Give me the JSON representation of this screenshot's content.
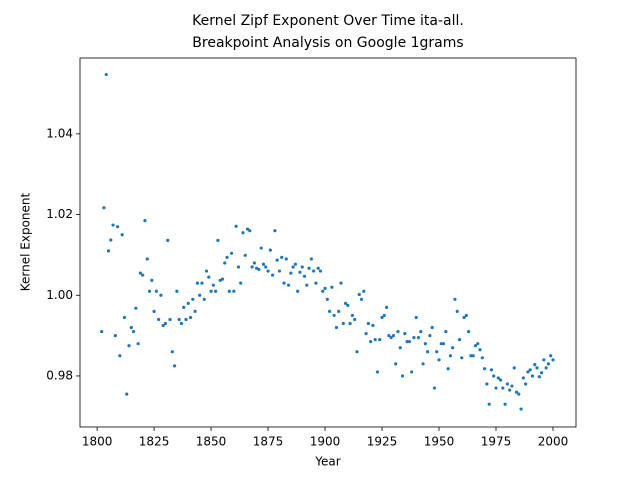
{
  "chart_data": {
    "type": "scatter",
    "title": [
      "Kernel Zipf Exponent Over Time ita-all.",
      "Breakpoint Analysis on Google 1grams"
    ],
    "xlabel": "Year",
    "ylabel": "Kernel Exponent",
    "xlim": [
      1792.5,
      2010.1
    ],
    "ylim": [
      0.96735,
      1.0588
    ],
    "xticks": [
      1800,
      1825,
      1850,
      1875,
      1900,
      1925,
      1950,
      1975,
      2000
    ],
    "yticks": [
      0.98,
      {
        "value": 1,
        "label": "1.00"
      },
      1.02,
      1.04
    ],
    "color": "#1f77b4",
    "x": [
      1802,
      1803,
      1804,
      1805,
      1806,
      1807,
      1808,
      1809,
      1810,
      1811,
      1812,
      1813,
      1814,
      1815,
      1816,
      1817,
      1818,
      1819,
      1820,
      1821,
      1822,
      1823,
      1824,
      1825,
      1826,
      1827,
      1828,
      1829,
      1830,
      1831,
      1832,
      1833,
      1834,
      1835,
      1836,
      1837,
      1838,
      1839,
      1840,
      1841,
      1842,
      1843,
      1844,
      1845,
      1846,
      1847,
      1848,
      1849,
      1850,
      1851,
      1852,
      1853,
      1854,
      1855,
      1856,
      1857,
      1858,
      1859,
      1860,
      1861,
      1862,
      1863,
      1864,
      1865,
      1866,
      1867,
      1868,
      1869,
      1870,
      1871,
      1872,
      1873,
      1874,
      1875,
      1876,
      1877,
      1878,
      1879,
      1880,
      1881,
      1882,
      1883,
      1884,
      1885,
      1886,
      1887,
      1888,
      1889,
      1890,
      1891,
      1892,
      1893,
      1894,
      1895,
      1896,
      1897,
      1898,
      1899,
      1900,
      1901,
      1902,
      1903,
      1904,
      1905,
      1906,
      1907,
      1908,
      1909,
      1910,
      1911,
      1912,
      1913,
      1914,
      1915,
      1916,
      1917,
      1918,
      1919,
      1920,
      1921,
      1922,
      1923,
      1924,
      1925,
      1926,
      1927,
      1928,
      1929,
      1930,
      1931,
      1932,
      1933,
      1934,
      1935,
      1936,
      1937,
      1938,
      1939,
      1940,
      1941,
      1942,
      1943,
      1944,
      1945,
      1946,
      1947,
      1948,
      1949,
      1950,
      1951,
      1952,
      1953,
      1954,
      1955,
      1956,
      1957,
      1958,
      1959,
      1960,
      1961,
      1962,
      1963,
      1964,
      1965,
      1966,
      1967,
      1968,
      1969,
      1970,
      1971,
      1972,
      1973,
      1974,
      1975,
      1976,
      1977,
      1978,
      1979,
      1980,
      1981,
      1982,
      1983,
      1984,
      1985,
      1986,
      1987,
      1988,
      1989,
      1990,
      1991,
      1992,
      1993,
      1994,
      1995,
      1996,
      1997,
      1998,
      1999,
      2000
    ],
    "values": [
      0.991,
      1.0217,
      1.0547,
      1.011,
      1.0137,
      1.0174,
      0.99,
      1.017,
      0.985,
      1.015,
      0.9945,
      0.9755,
      0.9875,
      0.992,
      0.991,
      0.9968,
      0.988,
      1.0055,
      1.005,
      1.0185,
      1.009,
      1.001,
      1.0037,
      0.996,
      1.001,
      0.994,
      1.0,
      0.9925,
      0.993,
      1.0136,
      0.994,
      0.986,
      0.9825,
      1.001,
      0.994,
      0.993,
      0.997,
      0.994,
      0.998,
      0.9945,
      0.999,
      0.996,
      1.003,
      1.0,
      1.003,
      0.999,
      1.006,
      1.0045,
      1.001,
      1.0025,
      1.001,
      1.0136,
      1.0037,
      1.004,
      1.008,
      1.0094,
      1.001,
      1.0104,
      1.001,
      1.0171,
      1.007,
      1.003,
      1.0155,
      1.0099,
      1.0164,
      1.016,
      1.007,
      1.008,
      1.0067,
      1.0064,
      1.0117,
      1.0077,
      1.007,
      1.006,
      1.0112,
      1.005,
      1.016,
      1.0087,
      1.006,
      1.0094,
      1.003,
      1.009,
      1.0025,
      1.0055,
      1.007,
      1.0077,
      1.001,
      1.0057,
      1.007,
      1.0047,
      1.0025,
      1.0067,
      1.009,
      1.006,
      1.003,
      1.0067,
      1.006,
      1.001,
      1.0017,
      0.999,
      0.996,
      1.002,
      0.995,
      0.992,
      0.996,
      1.003,
      0.993,
      0.998,
      0.9975,
      0.993,
      0.995,
      0.994,
      0.986,
      1.0002,
      0.999,
      1.001,
      0.9905,
      0.993,
      0.9885,
      0.9925,
      0.989,
      0.981,
      0.989,
      0.9945,
      0.995,
      0.997,
      0.99,
      0.9895,
      0.99,
      0.983,
      0.991,
      0.987,
      0.98,
      0.9905,
      0.9885,
      0.9885,
      0.981,
      0.9895,
      0.9945,
      0.9895,
      0.991,
      0.983,
      0.988,
      0.986,
      0.99,
      0.992,
      0.977,
      0.986,
      0.984,
      0.988,
      0.988,
      0.991,
      0.9818,
      0.985,
      0.987,
      0.999,
      0.996,
      0.989,
      0.9845,
      0.9945,
      0.995,
      0.991,
      0.985,
      0.985,
      0.9875,
      0.988,
      0.9865,
      0.9845,
      0.9818,
      0.978,
      0.973,
      0.9815,
      0.98,
      0.977,
      0.9795,
      0.979,
      0.977,
      0.973,
      0.978,
      0.9765,
      0.9775,
      0.982,
      0.976,
      0.9755,
      0.9718,
      0.9795,
      0.978,
      0.981,
      0.9815,
      0.98,
      0.9828,
      0.982,
      0.9798,
      0.9808,
      0.984,
      0.982,
      0.983,
      0.985,
      0.984
    ]
  }
}
